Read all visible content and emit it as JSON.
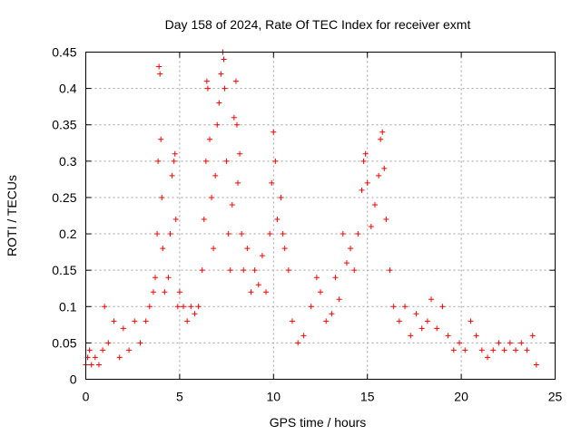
{
  "chart_data": {
    "type": "scatter",
    "title": "Day 158 of 2024, Rate Of TEC Index for receiver exmt",
    "xlabel": "GPS time / hours",
    "ylabel": "ROTI / TECUs",
    "xlim": [
      0,
      25
    ],
    "ylim": [
      0,
      0.45
    ],
    "x_ticks": [
      0,
      5,
      10,
      15,
      20,
      25
    ],
    "x_tick_labels": [
      "0",
      "5",
      "10",
      "15",
      "20",
      "25"
    ],
    "y_ticks": [
      0,
      0.05,
      0.1,
      0.15,
      0.2,
      0.25,
      0.3,
      0.35,
      0.4,
      0.45
    ],
    "y_tick_labels": [
      "0",
      "0.05",
      "0.1",
      "0.15",
      "0.2",
      "0.25",
      "0.3",
      "0.35",
      "0.4",
      "0.45"
    ],
    "grid": true,
    "marker": "plus",
    "color": "#ff0000",
    "series": [
      {
        "points": [
          [
            0.0,
            0.02
          ],
          [
            0.1,
            0.03
          ],
          [
            0.2,
            0.04
          ],
          [
            0.3,
            0.02
          ],
          [
            0.5,
            0.03
          ],
          [
            0.7,
            0.02
          ],
          [
            0.9,
            0.04
          ],
          [
            1.0,
            0.1
          ],
          [
            1.2,
            0.05
          ],
          [
            1.5,
            0.08
          ],
          [
            1.8,
            0.03
          ],
          [
            2.0,
            0.07
          ],
          [
            2.3,
            0.04
          ],
          [
            2.6,
            0.08
          ],
          [
            2.9,
            0.05
          ],
          [
            3.2,
            0.08
          ],
          [
            3.4,
            0.1
          ],
          [
            3.6,
            0.12
          ],
          [
            3.7,
            0.14
          ],
          [
            3.8,
            0.2
          ],
          [
            3.85,
            0.3
          ],
          [
            3.9,
            0.43
          ],
          [
            3.95,
            0.42
          ],
          [
            4.0,
            0.33
          ],
          [
            4.05,
            0.25
          ],
          [
            4.1,
            0.18
          ],
          [
            4.2,
            0.12
          ],
          [
            4.4,
            0.14
          ],
          [
            4.5,
            0.2
          ],
          [
            4.6,
            0.28
          ],
          [
            4.7,
            0.3
          ],
          [
            4.75,
            0.31
          ],
          [
            4.8,
            0.22
          ],
          [
            4.9,
            0.1
          ],
          [
            5.0,
            0.12
          ],
          [
            5.2,
            0.1
          ],
          [
            5.4,
            0.08
          ],
          [
            5.6,
            0.1
          ],
          [
            5.8,
            0.09
          ],
          [
            6.0,
            0.1
          ],
          [
            6.2,
            0.15
          ],
          [
            6.3,
            0.22
          ],
          [
            6.4,
            0.3
          ],
          [
            6.45,
            0.41
          ],
          [
            6.5,
            0.4
          ],
          [
            6.6,
            0.33
          ],
          [
            6.7,
            0.25
          ],
          [
            6.8,
            0.18
          ],
          [
            6.9,
            0.28
          ],
          [
            7.0,
            0.35
          ],
          [
            7.1,
            0.38
          ],
          [
            7.2,
            0.42
          ],
          [
            7.3,
            0.45
          ],
          [
            7.35,
            0.44
          ],
          [
            7.4,
            0.4
          ],
          [
            7.5,
            0.3
          ],
          [
            7.6,
            0.2
          ],
          [
            7.7,
            0.15
          ],
          [
            7.8,
            0.24
          ],
          [
            7.9,
            0.36
          ],
          [
            8.0,
            0.41
          ],
          [
            8.05,
            0.35
          ],
          [
            8.1,
            0.27
          ],
          [
            8.2,
            0.31
          ],
          [
            8.3,
            0.2
          ],
          [
            8.4,
            0.15
          ],
          [
            8.6,
            0.18
          ],
          [
            8.8,
            0.12
          ],
          [
            9.0,
            0.15
          ],
          [
            9.2,
            0.13
          ],
          [
            9.4,
            0.17
          ],
          [
            9.6,
            0.12
          ],
          [
            9.8,
            0.2
          ],
          [
            9.9,
            0.27
          ],
          [
            10.0,
            0.34
          ],
          [
            10.1,
            0.3
          ],
          [
            10.2,
            0.22
          ],
          [
            10.4,
            0.25
          ],
          [
            10.5,
            0.2
          ],
          [
            10.6,
            0.18
          ],
          [
            10.8,
            0.15
          ],
          [
            11.0,
            0.08
          ],
          [
            11.3,
            0.05
          ],
          [
            11.6,
            0.06
          ],
          [
            12.0,
            0.1
          ],
          [
            12.3,
            0.14
          ],
          [
            12.5,
            0.12
          ],
          [
            12.8,
            0.08
          ],
          [
            13.1,
            0.09
          ],
          [
            13.3,
            0.14
          ],
          [
            13.5,
            0.11
          ],
          [
            13.7,
            0.2
          ],
          [
            13.9,
            0.16
          ],
          [
            14.1,
            0.18
          ],
          [
            14.3,
            0.15
          ],
          [
            14.5,
            0.2
          ],
          [
            14.7,
            0.26
          ],
          [
            14.8,
            0.3
          ],
          [
            14.9,
            0.31
          ],
          [
            15.0,
            0.27
          ],
          [
            15.2,
            0.21
          ],
          [
            15.4,
            0.24
          ],
          [
            15.6,
            0.28
          ],
          [
            15.7,
            0.33
          ],
          [
            15.8,
            0.34
          ],
          [
            15.9,
            0.29
          ],
          [
            16.0,
            0.22
          ],
          [
            16.2,
            0.15
          ],
          [
            16.4,
            0.1
          ],
          [
            16.7,
            0.08
          ],
          [
            17.0,
            0.1
          ],
          [
            17.3,
            0.06
          ],
          [
            17.6,
            0.09
          ],
          [
            17.9,
            0.07
          ],
          [
            18.2,
            0.08
          ],
          [
            18.4,
            0.11
          ],
          [
            18.7,
            0.07
          ],
          [
            19.0,
            0.1
          ],
          [
            19.3,
            0.06
          ],
          [
            19.6,
            0.04
          ],
          [
            19.9,
            0.05
          ],
          [
            20.2,
            0.04
          ],
          [
            20.5,
            0.08
          ],
          [
            20.8,
            0.06
          ],
          [
            21.1,
            0.04
          ],
          [
            21.4,
            0.03
          ],
          [
            21.7,
            0.04
          ],
          [
            22.0,
            0.05
          ],
          [
            22.3,
            0.04
          ],
          [
            22.6,
            0.05
          ],
          [
            22.9,
            0.04
          ],
          [
            23.2,
            0.05
          ],
          [
            23.5,
            0.04
          ],
          [
            23.8,
            0.06
          ],
          [
            24.0,
            0.02
          ]
        ]
      }
    ]
  }
}
